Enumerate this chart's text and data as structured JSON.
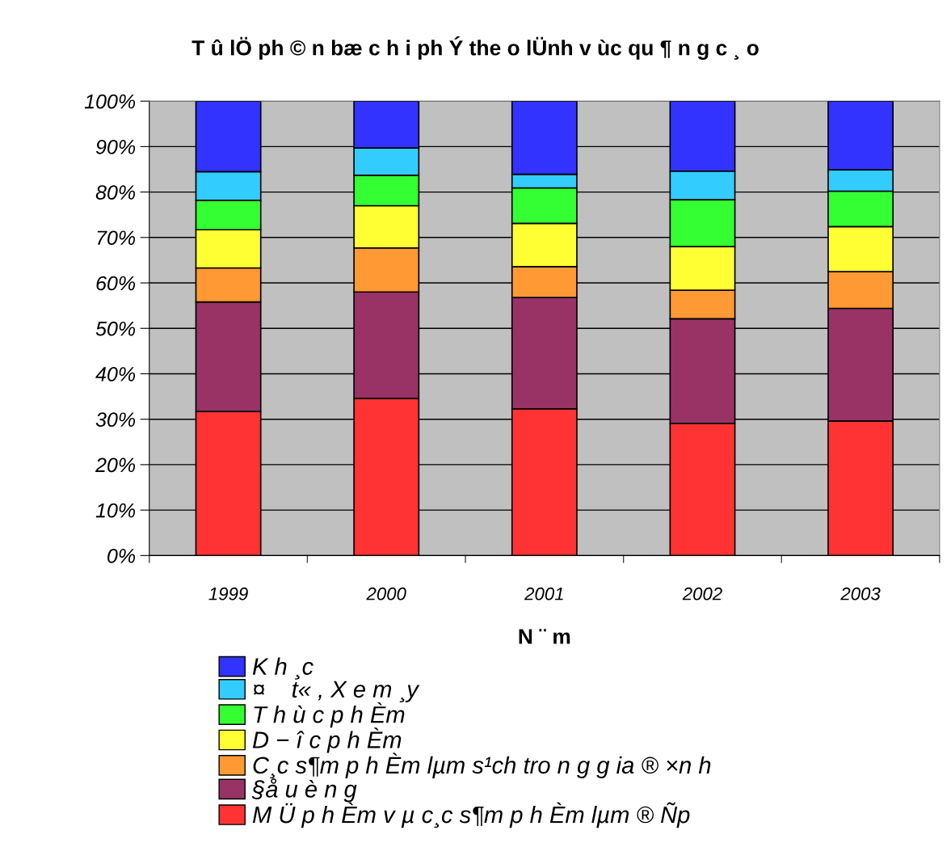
{
  "chart_data": {
    "type": "bar",
    "stacked": true,
    "title": "T û lÖ ph © n bæ c h i ph Ý the o lÜnh v ùc qu ¶ n g c ¸ o",
    "xlabel": "N ¨ m",
    "categories": [
      "1999",
      "2000",
      "2001",
      "2002",
      "2003"
    ],
    "ylim": [
      0,
      100
    ],
    "yticks": [
      {
        "value": 0,
        "label": "0%"
      },
      {
        "value": 10,
        "label": "10%"
      },
      {
        "value": 20,
        "label": "20%"
      },
      {
        "value": 30,
        "label": "30%"
      },
      {
        "value": 40,
        "label": "40%"
      },
      {
        "value": 50,
        "label": "50%"
      },
      {
        "value": 60,
        "label": "60%"
      },
      {
        "value": 70,
        "label": "70%"
      },
      {
        "value": 80,
        "label": "80%"
      },
      {
        "value": 90,
        "label": "90%"
      },
      {
        "value": 100,
        "label": "100%"
      }
    ],
    "grid": "y",
    "legend": "bottom",
    "series": [
      {
        "name": "M Ü p h Èm v µ c¸c s¶m p h Èm lµm ® Ñp",
        "color": "#ff3333",
        "values": [
          31.7,
          34.6,
          32.3,
          29.1,
          29.6
        ]
      },
      {
        "name": "§å u è n g",
        "color": "#993366",
        "values": [
          24.1,
          23.4,
          24.5,
          23.0,
          24.8
        ]
      },
      {
        "name": "C¸c s¶m p h Èm lµm s¹ch tro n g g ia ® ×n h",
        "color": "#ff9933",
        "values": [
          7.5,
          9.7,
          6.8,
          6.3,
          8.1
        ]
      },
      {
        "name": "D − î c p h Èm",
        "color": "#ffff33",
        "values": [
          8.4,
          9.3,
          9.5,
          9.6,
          9.9
        ]
      },
      {
        "name": "T h ù c p h Èm",
        "color": "#33ff33",
        "values": [
          6.5,
          6.7,
          7.8,
          10.3,
          7.8
        ]
      },
      {
        "name": "¤    t« , X e m ¸y",
        "color": "#33ccff",
        "values": [
          6.3,
          6.0,
          3.0,
          6.3,
          4.7
        ]
      },
      {
        "name": "K h ¸c",
        "color": "#3333ff",
        "values": [
          15.5,
          10.3,
          16.1,
          15.4,
          15.1
        ]
      }
    ]
  }
}
